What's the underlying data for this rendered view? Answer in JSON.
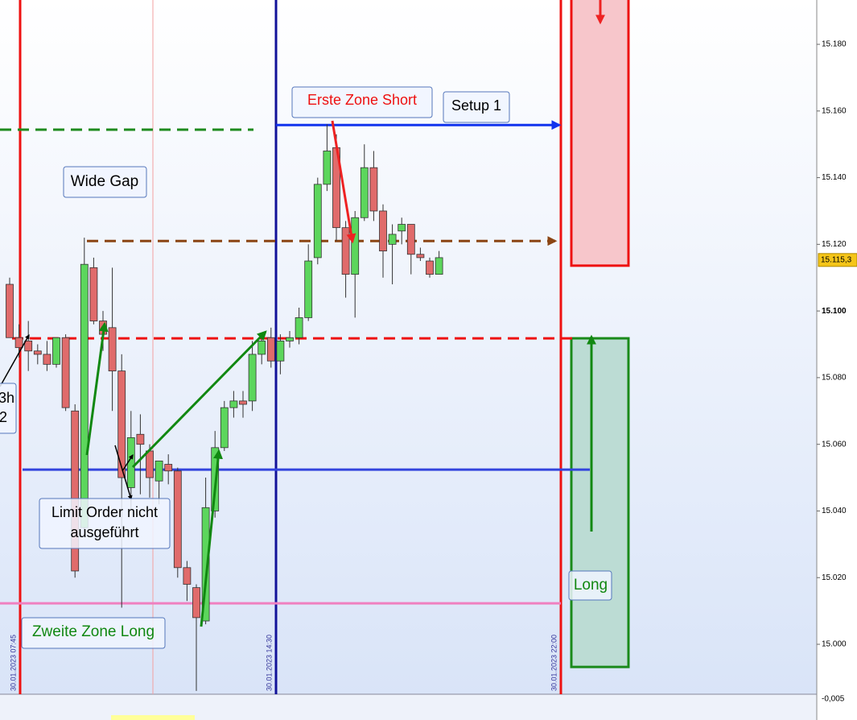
{
  "chart_data": {
    "type": "candlestick",
    "up_color": "#5cd65c",
    "down_color": "#e06b6b",
    "open": [
      15.108,
      15.092,
      15.091,
      15.088,
      15.087,
      15.084,
      15.092,
      15.07,
      15.035,
      15.113,
      15.097,
      15.095,
      15.082,
      15.047,
      15.063,
      15.058,
      15.049,
      15.054,
      15.052,
      15.023,
      15.017,
      15.007,
      15.04,
      15.059,
      15.071,
      15.073,
      15.073,
      15.087,
      15.092,
      15.085,
      15.091,
      15.092,
      15.098,
      15.116,
      15.138,
      15.149,
      15.125,
      15.111,
      15.128,
      15.143,
      15.13,
      15.12,
      15.124,
      15.126,
      15.117,
      15.115,
      15.111
    ],
    "high": [
      15.11,
      15.096,
      15.097,
      15.09,
      15.091,
      15.092,
      15.093,
      15.072,
      15.122,
      15.116,
      15.1,
      15.113,
      15.087,
      15.07,
      15.069,
      15.06,
      15.055,
      15.057,
      15.053,
      15.025,
      15.018,
      15.05,
      15.064,
      15.073,
      15.076,
      15.076,
      15.091,
      15.093,
      15.095,
      15.093,
      15.094,
      15.101,
      15.12,
      15.14,
      15.156,
      15.153,
      15.127,
      15.13,
      15.15,
      15.148,
      15.132,
      15.126,
      15.128,
      15.126,
      15.119,
      15.116,
      15.118
    ],
    "low": [
      15.092,
      15.086,
      15.082,
      15.084,
      15.082,
      15.083,
      15.07,
      15.02,
      15.034,
      15.096,
      15.088,
      15.07,
      15.011,
      15.04,
      15.045,
      15.044,
      15.042,
      15.048,
      15.02,
      15.013,
      14.986,
      15.006,
      15.038,
      15.058,
      15.068,
      15.068,
      15.07,
      15.084,
      15.083,
      15.081,
      15.089,
      15.09,
      15.097,
      15.114,
      15.136,
      15.121,
      15.104,
      15.098,
      15.127,
      15.127,
      15.11,
      15.108,
      15.12,
      15.111,
      15.115,
      15.11,
      15.111
    ],
    "close": [
      15.092,
      15.089,
      15.088,
      15.087,
      15.084,
      15.092,
      15.071,
      15.022,
      15.114,
      15.097,
      15.093,
      15.082,
      15.05,
      15.062,
      15.06,
      15.05,
      15.055,
      15.052,
      15.023,
      15.018,
      15.008,
      15.041,
      15.059,
      15.071,
      15.073,
      15.072,
      15.087,
      15.091,
      15.085,
      15.091,
      15.092,
      15.098,
      15.115,
      15.138,
      15.148,
      15.125,
      15.111,
      15.128,
      15.143,
      15.13,
      15.118,
      15.123,
      15.126,
      15.117,
      15.116,
      15.111,
      15.116
    ],
    "ylim": [
      14.9855,
      15.1933
    ],
    "yticks": [
      {
        "value": 15.0,
        "label": "15.000"
      },
      {
        "value": 15.02,
        "label": "15.020"
      },
      {
        "value": 15.04,
        "label": "15.040"
      },
      {
        "value": 15.06,
        "label": "15.060"
      },
      {
        "value": 15.08,
        "label": "15.080"
      },
      {
        "value": 15.1,
        "label": "15.100"
      },
      {
        "value": 15.12,
        "label": "15.120"
      },
      {
        "value": 15.14,
        "label": "15.140"
      },
      {
        "value": 15.16,
        "label": "15.160"
      },
      {
        "value": 15.18,
        "label": "15.180"
      }
    ],
    "last_price": {
      "value": 15.1153,
      "label": "15.115,3"
    },
    "lower_panel_label": "-0,005",
    "levels": [
      {
        "value": 15.1544,
        "color": "#1e8a1e",
        "dashed": true
      },
      {
        "value": 15.121,
        "color": "#8b4513",
        "dashed": true
      },
      {
        "value": 15.0918,
        "color": "#ee1111",
        "dashed": true
      },
      {
        "value": 15.0524,
        "color": "#3344dd",
        "dashed": false
      },
      {
        "value": 15.0123,
        "color": "#f080c0",
        "dashed": false
      }
    ],
    "zones": [
      {
        "top": 15.195,
        "bottom": 15.1136,
        "color": "#ee1111",
        "fill": "#f7c6cb"
      },
      {
        "top": 15.0918,
        "bottom": 14.9932,
        "color": "#1a8a1a",
        "fill": "#bcdcd4"
      }
    ],
    "setup_arrow": {
      "value": 15.1558,
      "color": "#1133ee"
    },
    "time_markers": [
      "30.01.2023 07:45",
      "30.01.2023 14:30",
      "30.01.2023 22:00"
    ],
    "annotations": [
      {
        "text": "Erste Zone Short",
        "color": "#ee1111"
      },
      {
        "text": "Setup 1",
        "color": "#000000"
      },
      {
        "text": "Wide Gap",
        "color": "#000000"
      },
      {
        "text": "Limit Order nicht",
        "color": "#000000"
      },
      {
        "text": "ausgeführt",
        "color": "#000000"
      },
      {
        "text": "Zweite Zone Long",
        "color": "#118811"
      },
      {
        "text": "Long",
        "color": "#118811"
      },
      {
        "text": "3h",
        "color": "#000000"
      },
      {
        "text": "2",
        "color": "#000000"
      }
    ]
  }
}
